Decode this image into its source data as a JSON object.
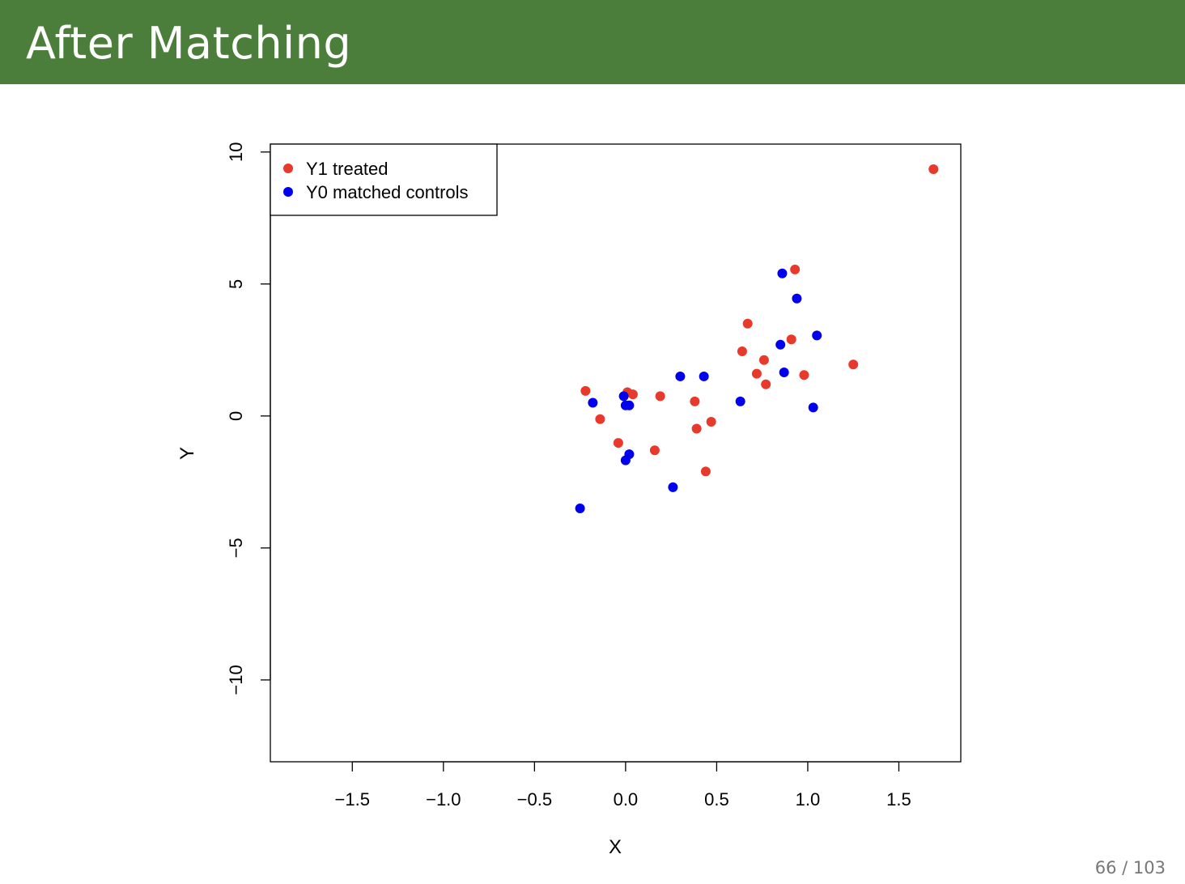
{
  "slide": {
    "title": "After Matching",
    "page_number": "66 / 103"
  },
  "colors": {
    "title_bar": "#4c7e3b",
    "treated": "#e8392d",
    "control": "#0000ee"
  },
  "chart_data": {
    "type": "scatter",
    "title": "",
    "xlabel": "X",
    "ylabel": "Y",
    "xlim": [
      -1.95,
      1.84
    ],
    "ylim": [
      -13.1,
      10.3
    ],
    "x_ticks": [
      -1.5,
      -1.0,
      -0.5,
      0.0,
      0.5,
      1.0,
      1.5
    ],
    "x_tick_labels": [
      "−1.5",
      "−1.0",
      "−0.5",
      "0.0",
      "0.5",
      "1.0",
      "1.5"
    ],
    "y_ticks": [
      10,
      5,
      0,
      -5,
      -10
    ],
    "y_tick_labels": [
      "10",
      "5",
      "0",
      "−5",
      "−10"
    ],
    "grid": false,
    "legend_position": "top-left",
    "series": [
      {
        "name": "Y1 treated",
        "color": "#e8392d",
        "points": [
          [
            1.69,
            9.35
          ],
          [
            0.93,
            5.55
          ],
          [
            0.67,
            3.5
          ],
          [
            0.91,
            2.9
          ],
          [
            0.64,
            2.45
          ],
          [
            0.76,
            2.12
          ],
          [
            1.25,
            1.95
          ],
          [
            0.72,
            1.6
          ],
          [
            0.98,
            1.55
          ],
          [
            0.77,
            1.2
          ],
          [
            -0.22,
            0.95
          ],
          [
            0.01,
            0.9
          ],
          [
            0.04,
            0.82
          ],
          [
            0.19,
            0.75
          ],
          [
            0.38,
            0.55
          ],
          [
            -0.14,
            -0.12
          ],
          [
            0.47,
            -0.22
          ],
          [
            0.39,
            -0.48
          ],
          [
            -0.04,
            -1.02
          ],
          [
            0.16,
            -1.3
          ],
          [
            0.44,
            -2.1
          ]
        ]
      },
      {
        "name": "Y0 matched controls",
        "color": "#0000ee",
        "points": [
          [
            0.86,
            5.4
          ],
          [
            0.94,
            4.45
          ],
          [
            1.05,
            3.05
          ],
          [
            0.85,
            2.7
          ],
          [
            0.87,
            1.65
          ],
          [
            0.3,
            1.5
          ],
          [
            0.43,
            1.5
          ],
          [
            -0.01,
            0.75
          ],
          [
            -0.18,
            0.5
          ],
          [
            0.63,
            0.55
          ],
          [
            0.0,
            0.4
          ],
          [
            0.02,
            0.4
          ],
          [
            1.03,
            0.32
          ],
          [
            0.02,
            -1.45
          ],
          [
            0.0,
            -1.68
          ],
          [
            0.26,
            -2.7
          ],
          [
            -0.25,
            -3.5
          ]
        ]
      }
    ]
  }
}
